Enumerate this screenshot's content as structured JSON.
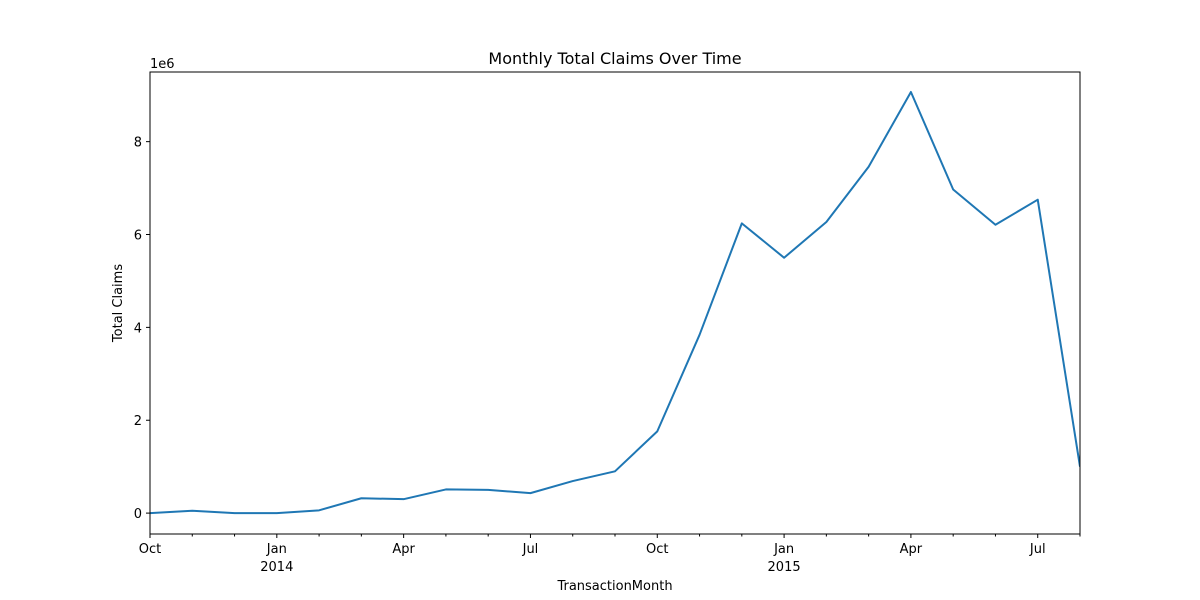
{
  "chart_data": {
    "type": "line",
    "title": "Monthly Total Claims Over Time",
    "xlabel": "TransactionMonth",
    "ylabel": "Total Claims",
    "y_scale_label": "1e6",
    "ylim": [
      -0.45,
      9.5
    ],
    "y_ticks": [
      {
        "value": 0,
        "label": "0"
      },
      {
        "value": 2,
        "label": "2"
      },
      {
        "value": 4,
        "label": "4"
      },
      {
        "value": 6,
        "label": "6"
      },
      {
        "value": 8,
        "label": "8"
      }
    ],
    "x_ticks_major": [
      {
        "date": "2013-10",
        "label": "Oct",
        "sublabel": ""
      },
      {
        "date": "2014-01",
        "label": "Jan",
        "sublabel": "2014"
      },
      {
        "date": "2014-04",
        "label": "Apr",
        "sublabel": ""
      },
      {
        "date": "2014-07",
        "label": "Jul",
        "sublabel": ""
      },
      {
        "date": "2014-10",
        "label": "Oct",
        "sublabel": ""
      },
      {
        "date": "2015-01",
        "label": "Jan",
        "sublabel": "2015"
      },
      {
        "date": "2015-04",
        "label": "Apr",
        "sublabel": ""
      },
      {
        "date": "2015-07",
        "label": "Jul",
        "sublabel": ""
      }
    ],
    "x": [
      "2013-10",
      "2013-11",
      "2013-12",
      "2014-01",
      "2014-02",
      "2014-03",
      "2014-04",
      "2014-05",
      "2014-06",
      "2014-07",
      "2014-08",
      "2014-09",
      "2014-10",
      "2014-11",
      "2014-12",
      "2015-01",
      "2015-02",
      "2015-03",
      "2015-04",
      "2015-05",
      "2015-06",
      "2015-07",
      "2015-08"
    ],
    "series": [
      {
        "color": "#1f77b4",
        "values": [
          0.0,
          0.05,
          0.0,
          0.0,
          0.06,
          0.32,
          0.3,
          0.51,
          0.5,
          0.43,
          0.69,
          0.9,
          1.76,
          3.84,
          6.24,
          5.5,
          6.27,
          7.46,
          9.07,
          6.97,
          6.21,
          6.75,
          1.0
        ]
      }
    ],
    "grid": false,
    "legend": "none"
  }
}
